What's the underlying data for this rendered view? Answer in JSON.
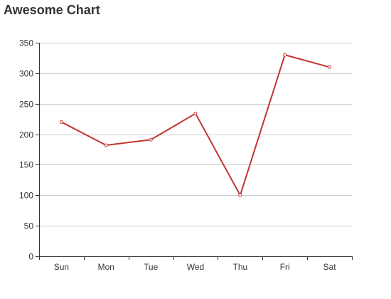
{
  "chart_data": {
    "type": "line",
    "title": "Awesome Chart",
    "categories": [
      "Sun",
      "Mon",
      "Tue",
      "Wed",
      "Thu",
      "Fri",
      "Sat"
    ],
    "series": [
      {
        "values": [
          220,
          182,
          191,
          234,
          100,
          330,
          310
        ]
      }
    ],
    "yticks": [
      0,
      50,
      100,
      150,
      200,
      250,
      300,
      350
    ],
    "ylim": [
      0,
      350
    ],
    "grid": true,
    "colors": {
      "line": "#c23531",
      "grid": "#cccccc",
      "axis": "#333333",
      "text": "#333333"
    }
  }
}
